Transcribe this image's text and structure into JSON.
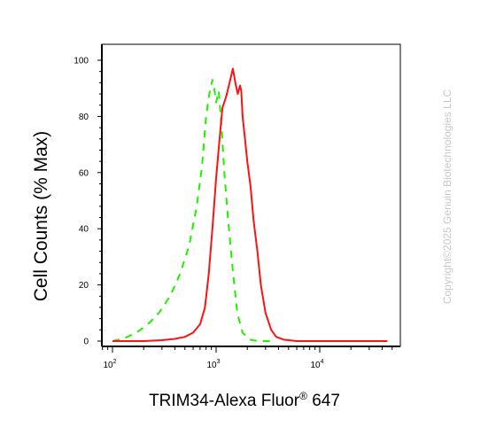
{
  "chart_data": {
    "type": "line",
    "title": "",
    "xlabel": "TRIM34-Alexa Fluor® 647",
    "xlabel_parts": {
      "main": "TRIM34-Alexa Fluor",
      "sup": "®",
      "tail": " 647"
    },
    "ylabel": "Cell Counts (% Max)",
    "x_scale": "log",
    "xlim": [
      80,
      50000
    ],
    "ylim": [
      0,
      100
    ],
    "grid": false,
    "x_ticks": [
      {
        "value": 100,
        "base": "10",
        "exp": "2"
      },
      {
        "value": 1000,
        "base": "10",
        "exp": "3"
      },
      {
        "value": 10000,
        "base": "10",
        "exp": "4"
      }
    ],
    "y_ticks": [
      {
        "value": 0,
        "label": "0"
      },
      {
        "value": 20,
        "label": "20"
      },
      {
        "value": 40,
        "label": "40"
      },
      {
        "value": 60,
        "label": "60"
      },
      {
        "value": 80,
        "label": "80"
      },
      {
        "value": 100,
        "label": "100"
      }
    ],
    "series": [
      {
        "style": "dashed",
        "color": "#22ee00",
        "x": [
          100,
          130,
          170,
          220,
          280,
          360,
          450,
          550,
          650,
          730,
          800,
          860,
          920,
          960,
          1000,
          1060,
          1130,
          1200,
          1300,
          1450,
          1600,
          1800,
          2100,
          2600,
          3500
        ],
        "y": [
          0,
          1,
          3,
          6,
          10,
          16,
          24,
          34,
          48,
          62,
          80,
          88,
          93,
          90,
          85,
          89,
          76,
          60,
          44,
          25,
          10,
          3,
          0.5,
          0,
          0
        ]
      },
      {
        "style": "solid",
        "color": "#ff1111",
        "x": [
          100,
          200,
          300,
          400,
          500,
          600,
          700,
          780,
          850,
          920,
          1000,
          1080,
          1150,
          1250,
          1350,
          1450,
          1550,
          1620,
          1700,
          1750,
          1800,
          1900,
          2000,
          2150,
          2300,
          2500,
          2700,
          3000,
          3400,
          3800,
          4500,
          6000,
          10000,
          20000,
          45000
        ],
        "y": [
          0,
          0,
          0.3,
          0.8,
          1.5,
          3,
          6,
          12,
          24,
          40,
          58,
          72,
          83,
          87,
          92,
          97,
          91,
          88,
          91,
          89,
          80,
          72,
          64,
          55,
          43,
          32,
          20,
          10,
          4,
          1.5,
          0.5,
          0,
          0,
          0,
          0
        ]
      }
    ]
  },
  "watermark": "Copyright©2025 Genuin Biotechnologies LLC"
}
